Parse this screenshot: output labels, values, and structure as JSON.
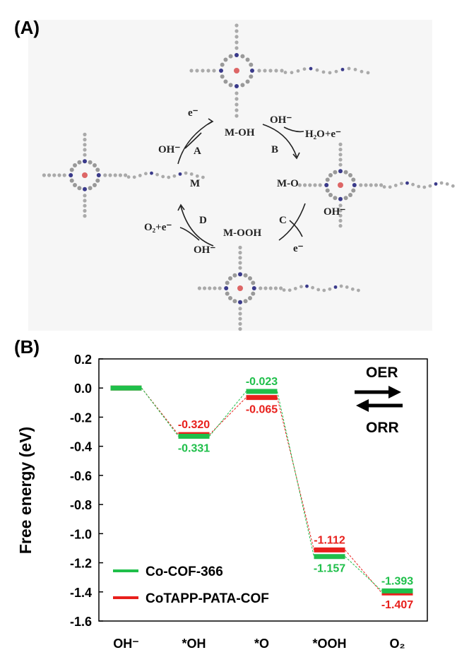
{
  "panel_a": {
    "label": "(A)",
    "texts": [
      "e⁻",
      "OH⁻",
      "A",
      "M-OH",
      "OH⁻",
      "B",
      "H₂O+e⁻",
      "M",
      "M-O",
      "C",
      "OH⁻",
      "e⁻",
      "D",
      "O₂+e⁻",
      "M-OOH",
      "OH⁻"
    ]
  },
  "panel_b": {
    "label": "(B)"
  },
  "chart_data": {
    "type": "level",
    "y_label": "Free energy (eV)",
    "categories": [
      "OH⁻",
      "*OH",
      "*O",
      "*OOH",
      "O₂"
    ],
    "series": [
      {
        "name": "Co-COF-366",
        "color": "#1fbf4a",
        "values": [
          0,
          -0.331,
          -0.023,
          -1.157,
          -1.393
        ],
        "value_labels": [
          null,
          "-0.331",
          "-0.023",
          "-1.157",
          "-1.393"
        ]
      },
      {
        "name": "CoTAPP-PATA-COF",
        "color": "#e8201c",
        "values": [
          0,
          -0.32,
          -0.065,
          -1.112,
          -1.407
        ],
        "value_labels": [
          null,
          "-0.320",
          "-0.065",
          "-1.112",
          "-1.407"
        ]
      }
    ],
    "ylim": [
      -1.6,
      0.2
    ],
    "yticks": [
      0.2,
      {
        "value": 0,
        "label": "0.0"
      },
      -0.2,
      -0.4,
      -0.6,
      -0.8,
      {
        "value": -1,
        "label": "-1.0"
      },
      -1.2,
      -1.4,
      -1.6
    ],
    "legend": "lower left",
    "annotations": [
      "OER",
      "ORR"
    ]
  }
}
